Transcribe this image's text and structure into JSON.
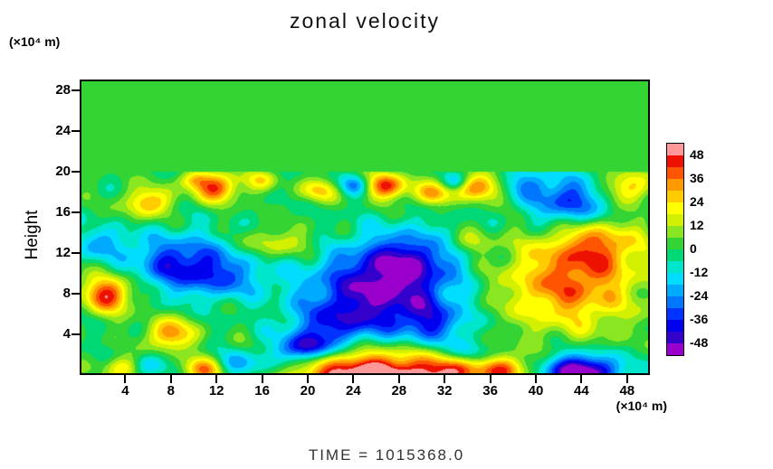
{
  "title": "zonal velocity",
  "y_axis": {
    "label": "Height",
    "units": "(×10⁴ m)",
    "ticks": [
      4,
      8,
      12,
      16,
      20,
      24,
      28
    ]
  },
  "x_axis": {
    "units": "(×10⁴ m)",
    "ticks": [
      4,
      8,
      12,
      16,
      20,
      24,
      28,
      32,
      36,
      40,
      44,
      48
    ]
  },
  "footer": {
    "time_label": "TIME  =  1015368.0"
  },
  "chart_data": {
    "type": "heatmap",
    "title": "zonal velocity",
    "xlabel": "(×10⁴ m)",
    "ylabel": "Height (×10⁴ m)",
    "x_range": [
      0,
      50
    ],
    "y_range": [
      0,
      29.1
    ],
    "x_ticks": [
      4,
      8,
      12,
      16,
      20,
      24,
      28,
      32,
      36,
      40,
      44,
      48
    ],
    "y_ticks": [
      4,
      8,
      12,
      16,
      20,
      24,
      28
    ],
    "uniform_above_y": 20,
    "background_value": 0,
    "time_annotation": "TIME  =  1015368.0",
    "colorbar": {
      "tick_labels": [
        48,
        36,
        24,
        12,
        0,
        -12,
        -24,
        -36,
        -48
      ],
      "levels": [
        -48,
        -42,
        -36,
        -30,
        -24,
        -18,
        -12,
        -6,
        0,
        6,
        12,
        18,
        24,
        30,
        36,
        42,
        48
      ],
      "colors": [
        "#9900cc",
        "#3300cc",
        "#0000ee",
        "#0033ff",
        "#0077ff",
        "#00aaff",
        "#00ddff",
        "#00e6cc",
        "#00d875",
        "#33d433",
        "#8ae620",
        "#d2f000",
        "#ffff00",
        "#ffcc00",
        "#ff9900",
        "#ff5500",
        "#ee1100",
        "#ff9999"
      ]
    },
    "features_blobs": [
      [
        26,
        8,
        4.5,
        3.0,
        -46
      ],
      [
        29,
        11.5,
        3.0,
        2.0,
        -30
      ],
      [
        22,
        4.5,
        2.5,
        1.5,
        -24
      ],
      [
        19,
        2.5,
        1.6,
        1.0,
        -28
      ],
      [
        31,
        5,
        2.2,
        1.6,
        -24
      ],
      [
        9,
        11,
        3.2,
        2.0,
        -38
      ],
      [
        13,
        9.5,
        2.4,
        1.4,
        -18
      ],
      [
        2,
        13,
        1.6,
        1.1,
        -20
      ],
      [
        43,
        17,
        2.6,
        1.7,
        -36
      ],
      [
        39,
        19,
        1.8,
        1.0,
        -18
      ],
      [
        24,
        18.7,
        0.9,
        0.7,
        -26
      ],
      [
        33,
        19,
        0.8,
        0.6,
        -20
      ],
      [
        14,
        1,
        1.6,
        0.9,
        -26
      ],
      [
        20.5,
        2.8,
        1.2,
        0.8,
        -20
      ],
      [
        34,
        2,
        1.4,
        0.9,
        -18
      ],
      [
        6,
        1,
        1.4,
        0.8,
        -20
      ],
      [
        44,
        0.3,
        2.4,
        1.2,
        -60
      ],
      [
        43,
        9,
        4.2,
        3.2,
        38
      ],
      [
        45.5,
        13,
        2.6,
        1.8,
        26
      ],
      [
        2.5,
        8,
        1.6,
        1.3,
        45
      ],
      [
        6,
        17,
        1.4,
        1.0,
        32
      ],
      [
        12,
        18.5,
        1.5,
        1.0,
        40
      ],
      [
        21,
        18.2,
        1.1,
        0.8,
        26
      ],
      [
        27,
        18.6,
        1.4,
        0.9,
        42
      ],
      [
        31,
        17.8,
        1.1,
        0.8,
        30
      ],
      [
        35,
        18.5,
        1.4,
        0.9,
        40
      ],
      [
        48,
        18.5,
        1.6,
        1.1,
        30
      ],
      [
        26,
        -1,
        4.6,
        2.3,
        78
      ],
      [
        33,
        0.5,
        1.8,
        1.0,
        30
      ],
      [
        37.5,
        0.5,
        1.6,
        1.0,
        36
      ],
      [
        8,
        4,
        1.4,
        1.1,
        36
      ],
      [
        11,
        0.5,
        1.5,
        0.9,
        34
      ],
      [
        4,
        0.8,
        1.2,
        0.8,
        28
      ],
      [
        17.5,
        13,
        2.4,
        1.0,
        18
      ],
      [
        34,
        13,
        1.5,
        0.8,
        16
      ],
      [
        16,
        19.2,
        1.0,
        0.7,
        18
      ],
      [
        10,
        19.2,
        0.9,
        0.6,
        20
      ]
    ],
    "texture": {
      "amp1": 5.5,
      "amp2": 4.0
    }
  }
}
